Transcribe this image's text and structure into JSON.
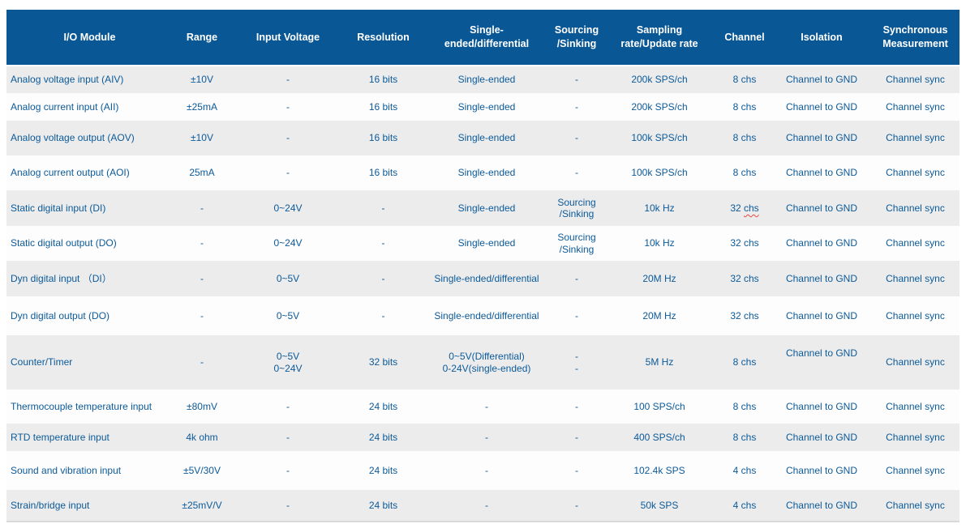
{
  "colors": {
    "page_bg": "#ffffff",
    "header_bg": "#0a5796",
    "header_text": "#ffffff",
    "cell_text": "#0c5a99",
    "row_odd_bg": "#ececec",
    "row_even_bg": "#fdfdfd",
    "table_bottom_border": "#d9d9d9",
    "spellcheck_underline": "#e8493f"
  },
  "table": {
    "columns": [
      {
        "label": "I/O Module"
      },
      {
        "label": "Range"
      },
      {
        "label": "Input Voltage"
      },
      {
        "label": "Resolution"
      },
      {
        "label": "Single-\nended/differential"
      },
      {
        "label": "Sourcing\n/Sinking"
      },
      {
        "label": "Sampling\nrate/Update rate"
      },
      {
        "label": "Channel"
      },
      {
        "label": "Isolation"
      },
      {
        "label": "Synchronous\nMeasurement"
      }
    ],
    "rows": [
      {
        "cells": [
          "Analog voltage input (AIV)",
          "±10V",
          "-",
          "16 bits",
          "Single-ended",
          "-",
          "200k SPS/ch",
          "8 chs",
          "Channel to GND",
          "Channel sync"
        ]
      },
      {
        "cells": [
          "Analog current input (AII)",
          "±25mA",
          "-",
          "16 bits",
          "Single-ended",
          "-",
          "200k SPS/ch",
          "8 chs",
          "Channel to GND",
          "Channel sync"
        ]
      },
      {
        "cells": [
          "Analog voltage output (AOV)",
          "±10V",
          "-",
          "16 bits",
          "Single-ended",
          "-",
          "100k SPS/ch",
          "8 chs",
          "Channel to GND",
          "Channel sync"
        ]
      },
      {
        "cells": [
          "Analog current output (AOI)",
          "25mA",
          "-",
          "16 bits",
          "Single-ended",
          "-",
          "100k SPS/ch",
          "8 chs",
          "Channel to GND",
          "Channel sync"
        ]
      },
      {
        "cells": [
          "Static digital input (DI)",
          "-",
          "0~24V",
          "-",
          "Single-ended",
          "Sourcing\n/Sinking",
          "10k Hz",
          "32 chs",
          "Channel to GND",
          "Channel sync"
        ],
        "spellcheck": {
          "cell_index": 7,
          "prefix": "32 ",
          "word": "chs"
        }
      },
      {
        "cells": [
          "Static digital output (DO)",
          "-",
          "0~24V",
          "-",
          "Single-ended",
          "Sourcing\n/Sinking",
          "10k Hz",
          "32 chs",
          "Channel to GND",
          "Channel sync"
        ]
      },
      {
        "cells": [
          "Dyn digital input （DI）",
          "-",
          "0~5V",
          "-",
          "Single-ended/differential",
          "-",
          "20M Hz",
          "32 chs",
          "Channel to GND",
          "Channel sync"
        ]
      },
      {
        "cells": [
          "Dyn digital output (DO)",
          "-",
          "0~5V",
          "-",
          "Single-ended/differential",
          "-",
          "20M Hz",
          "32 chs",
          "Channel to GND",
          "Channel sync"
        ]
      },
      {
        "cells": [
          "Counter/Timer",
          "-",
          "0~5V\n0~24V",
          "32 bits",
          "0~5V(Differential)\n0-24V(single-ended)",
          "-\n-",
          "5M Hz",
          "8 chs",
          "Channel to GND",
          "Channel sync"
        ],
        "raised_cell": 8
      },
      {
        "cells": [
          "Thermocouple temperature input",
          "±80mV",
          "-",
          "24 bits",
          "-",
          "-",
          "100 SPS/ch",
          "8 chs",
          "Channel to GND",
          "Channel sync"
        ]
      },
      {
        "cells": [
          "RTD temperature input",
          "4k ohm",
          "-",
          "24 bits",
          "-",
          "-",
          "400 SPS/ch",
          "8 chs",
          "Channel to GND",
          "Channel sync"
        ]
      },
      {
        "cells": [
          "Sound and vibration input",
          "±5V/30V",
          "-",
          "24 bits",
          "-",
          "-",
          "102.4k SPS",
          "4 chs",
          "Channel to GND",
          "Channel sync"
        ]
      },
      {
        "cells": [
          "Strain/bridge input",
          "±25mV/V",
          "-",
          "24 bits",
          "-",
          "-",
          "50k SPS",
          "4 chs",
          "Channel to GND",
          "Channel sync"
        ]
      }
    ]
  }
}
